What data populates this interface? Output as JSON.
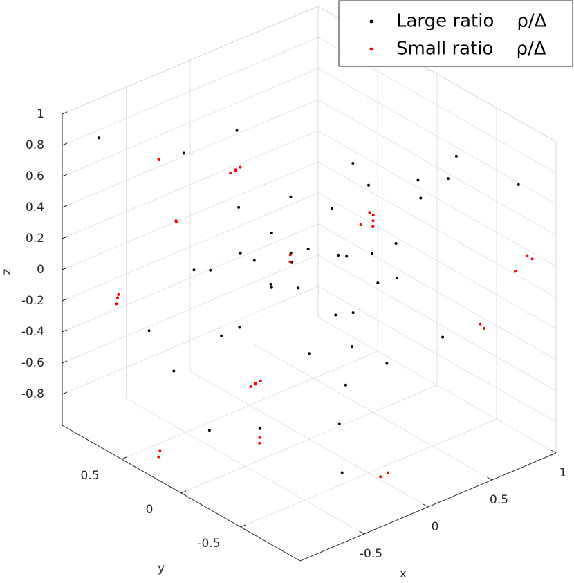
{
  "chart_data": {
    "type": "scatter3d",
    "xlabel": "x",
    "ylabel": "y",
    "zlabel": "z",
    "xlim": [
      -1,
      1
    ],
    "ylim": [
      -1,
      1
    ],
    "zlim": [
      -1,
      1
    ],
    "xticks": [
      -0.5,
      0,
      0.5,
      1
    ],
    "yticks": [
      -0.5,
      0,
      0.5
    ],
    "zticks": [
      -0.8,
      -0.6,
      -0.4,
      -0.2,
      0,
      0.2,
      0.4,
      0.6,
      0.8,
      1
    ],
    "grid": true,
    "legend": "top-right",
    "series": [
      {
        "name": "Large ratio    ρ/Δ",
        "color": "#000000",
        "x": [
          -0.9,
          -0.7,
          -0.5,
          -0.3,
          -0.1,
          0.1,
          0.3,
          0.5,
          0.7,
          0.9,
          -0.8,
          -0.6,
          -0.4,
          -0.2,
          0,
          0.2,
          0.4,
          0.6,
          0.8,
          -0.9,
          -0.5,
          -0.1,
          0.3,
          0.7,
          0.9,
          -0.7,
          -0.3,
          0.1,
          0.5,
          0.8,
          -0.6,
          -0.2,
          0.2,
          0.6,
          0,
          -0.4,
          0.4,
          0.1,
          -0.1,
          0.3,
          -0.3,
          0.5,
          -0.5,
          0.2,
          -0.2
        ],
        "y": [
          0.8,
          -0.6,
          0.3,
          -0.9,
          0.5,
          -0.2,
          0.9,
          -0.7,
          0.1,
          0.6,
          -0.4,
          0.7,
          -0.8,
          0.2,
          -0.5,
          0.8,
          -0.1,
          0.4,
          -0.9,
          0,
          0.6,
          -0.3,
          -0.8,
          0.9,
          -0.2,
          0.3,
          -0.6,
          0.7,
          -0.4,
          0.5,
          -0.9,
          0.1,
          -0.7,
          0.8,
          0,
          0.4,
          -0.3,
          0.2,
          -0.1,
          0.1,
          0,
          -0.2,
          0.2,
          -0.1,
          0.1
        ],
        "z": [
          0.9,
          0.7,
          -0.9,
          0.5,
          0.8,
          -0.6,
          -0.3,
          0.95,
          -0.8,
          0.2,
          0.6,
          -0.4,
          0.3,
          -0.95,
          0.85,
          -0.7,
          0.1,
          -0.2,
          0.75,
          0.4,
          -0.65,
          0.65,
          -0.1,
          -0.5,
          0.45,
          0.95,
          -0.85,
          0.15,
          0.55,
          -0.9,
          -0.3,
          0.35,
          0.9,
          0,
          -0.45,
          0.05,
          0.25,
          -0.15,
          0.3,
          -0.35,
          0.1,
          -0.05,
          -0.25,
          0.15,
          0.0
        ]
      },
      {
        "name": "Small ratio    ρ/Δ",
        "color": "#ff0000",
        "x": [
          0,
          0.02,
          -0.02,
          0.01,
          -0.01,
          0,
          0.02,
          -0.02,
          0.01,
          -0.01,
          0.5,
          0.52,
          0.48,
          0.45,
          0.5,
          -0.3,
          -0.32,
          -0.5,
          -0.48,
          -0.52,
          1,
          0.98,
          0.96,
          0.8,
          0.78,
          -0.5,
          -0.48,
          -0.8,
          -0.82,
          -0.78,
          0,
          0.04,
          -1,
          -0.98,
          0,
          0.02
        ],
        "y": [
          0.62,
          0.6,
          0.64,
          0.63,
          0.61,
          0.45,
          0.43,
          0.47,
          0.46,
          0.44,
          0,
          0.02,
          -0.02,
          0.05,
          0.03,
          0.94,
          0.92,
          0.58,
          0.6,
          0.56,
          -0.8,
          -0.78,
          -0.7,
          -0.61,
          -0.6,
          -0.12,
          -0.1,
          0.75,
          0.72,
          0.78,
          -0.6,
          -0.62,
          0.19,
          0.2,
          0.16,
          0.18
        ],
        "z": [
          0.46,
          0.48,
          0.44,
          0.45,
          0.47,
          -0.84,
          -0.82,
          -0.86,
          -0.85,
          -0.83,
          0.23,
          0.25,
          0.21,
          0.2,
          0.27,
          0.49,
          0.51,
          0.32,
          0.3,
          0.34,
          0.16,
          0.18,
          0.05,
          -0.3,
          -0.27,
          -0.8,
          -0.78,
          -0.14,
          -0.1,
          -0.2,
          -0.98,
          -0.96,
          -0.85,
          -0.82,
          0.07,
          0.1
        ]
      }
    ]
  }
}
